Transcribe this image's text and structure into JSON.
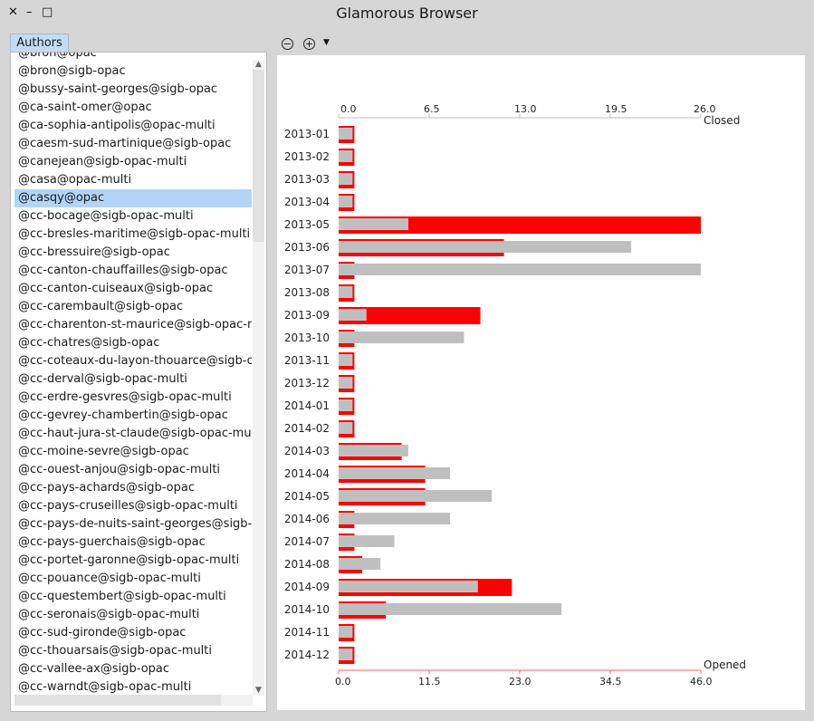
{
  "window": {
    "title": "Glamorous Browser",
    "close_glyph": "✕",
    "minimize_glyph": "–",
    "maximize_glyph": "□"
  },
  "authors_tab": {
    "label": "Authors"
  },
  "toolbar": {
    "zoom_out_glyph": "−",
    "zoom_in_glyph": "+",
    "menu_glyph": "▼"
  },
  "authors": [
    "@bron@opac",
    "@bron@sigb-opac",
    "@bussy-saint-georges@sigb-opac",
    "@ca-saint-omer@opac",
    "@ca-sophia-antipolis@opac-multi",
    "@caesm-sud-martinique@sigb-opac",
    "@canejean@sigb-opac-multi",
    "@casa@opac-multi",
    "@casqy@opac",
    "@cc-bocage@sigb-opac-multi",
    "@cc-bresles-maritime@sigb-opac-multi",
    "@cc-bressuire@sigb-opac",
    "@cc-canton-chauffailles@sigb-opac",
    "@cc-canton-cuiseaux@sigb-opac",
    "@cc-carembault@sigb-opac",
    "@cc-charenton-st-maurice@sigb-opac-multi",
    "@cc-chatres@sigb-opac",
    "@cc-coteaux-du-layon-thouarce@sigb-opac",
    "@cc-derval@sigb-opac-multi",
    "@cc-erdre-gesvres@sigb-opac-multi",
    "@cc-gevrey-chambertin@sigb-opac",
    "@cc-haut-jura-st-claude@sigb-opac-multi",
    "@cc-moine-sevre@sigb-opac",
    "@cc-ouest-anjou@sigb-opac-multi",
    "@cc-pays-achards@sigb-opac",
    "@cc-pays-cruseilles@sigb-opac-multi",
    "@cc-pays-de-nuits-saint-georges@sigb-opac",
    "@cc-pays-guerchais@sigb-opac",
    "@cc-portet-garonne@sigb-opac-multi",
    "@cc-pouance@sigb-opac-multi",
    "@cc-questembert@sigb-opac-multi",
    "@cc-seronais@sigb-opac-multi",
    "@cc-sud-gironde@sigb-opac",
    "@cc-thouarsais@sigb-opac-multi",
    "@cc-vallee-ax@sigb-opac",
    "@cc-warndt@sigb-opac-multi"
  ],
  "selected_author": "@casqy@opac",
  "colors": {
    "opened": "#ff0000",
    "closed": "#bfbfbf",
    "selection": "#b2d4f7"
  },
  "chart_data": {
    "type": "bar",
    "categories": [
      "2013-01",
      "2013-02",
      "2013-03",
      "2013-04",
      "2013-05",
      "2013-06",
      "2013-07",
      "2013-08",
      "2013-09",
      "2013-10",
      "2013-11",
      "2013-12",
      "2014-01",
      "2014-02",
      "2014-03",
      "2014-04",
      "2014-05",
      "2014-06",
      "2014-07",
      "2014-08",
      "2014-09",
      "2014-10",
      "2014-11",
      "2014-12"
    ],
    "series": [
      {
        "name": "Opened",
        "axis": "bottom",
        "xlim": [
          0,
          46
        ],
        "ticks": [
          "0.0",
          "11.5",
          "23.0",
          "34.5",
          "46.0"
        ],
        "values": [
          2,
          2,
          2,
          2,
          46,
          21,
          2,
          2,
          18,
          2,
          2,
          2,
          2,
          2,
          8,
          11,
          11,
          2,
          2,
          3,
          22,
          6,
          2,
          2
        ]
      },
      {
        "name": "Closed",
        "axis": "top",
        "xlim": [
          0,
          26
        ],
        "ticks": [
          "0.0",
          "6.5",
          "13.0",
          "19.5",
          "26.0"
        ],
        "values": [
          1,
          1,
          1,
          1,
          5,
          21,
          26,
          1,
          2,
          9,
          1,
          1,
          1,
          1,
          5,
          8,
          11,
          8,
          4,
          3,
          10,
          16,
          1,
          1
        ]
      }
    ]
  }
}
